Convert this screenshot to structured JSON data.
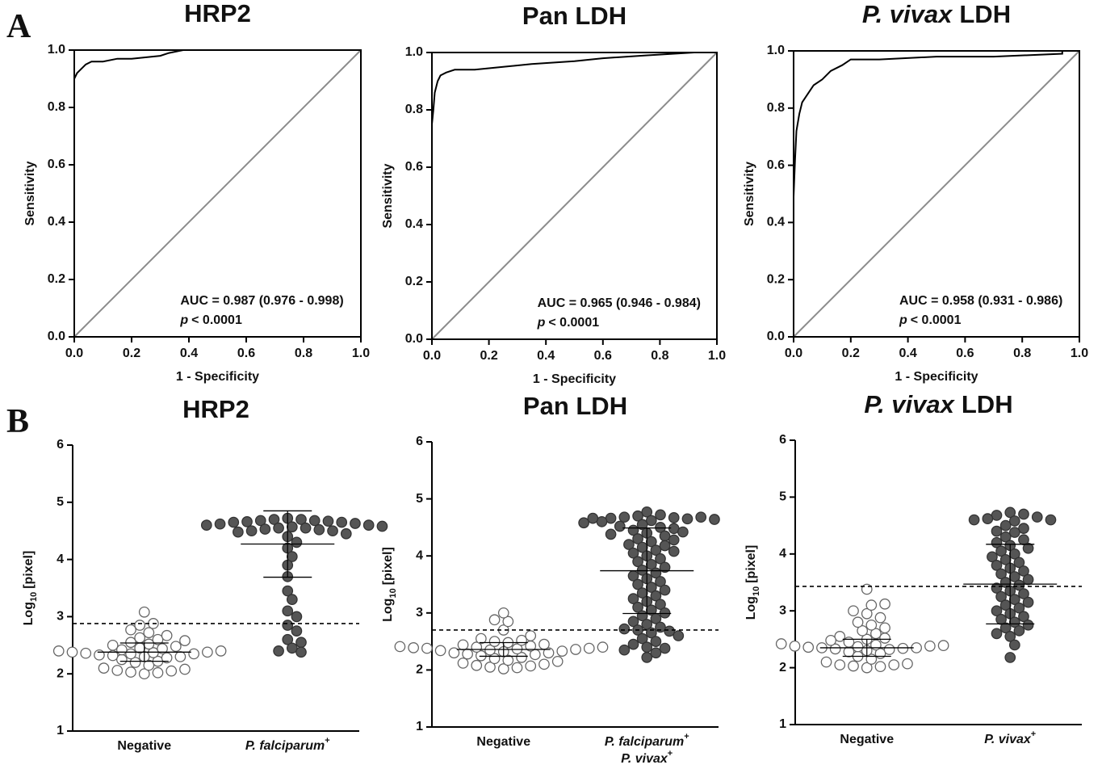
{
  "panel_labels": [
    "A",
    "B"
  ],
  "chart_data": [
    {
      "type": "line",
      "title": "HRP2",
      "xlabel": "1 - Specificity",
      "ylabel": "Sensitivity",
      "xlim": [
        0,
        1
      ],
      "ylim": [
        0,
        1
      ],
      "xticks": [
        {
          "value": 0,
          "label": "0.0"
        },
        0.2,
        0.4,
        0.6,
        0.8,
        {
          "value": 1,
          "label": "1.0"
        }
      ],
      "yticks": [
        {
          "value": 0,
          "label": "0.0"
        },
        0.2,
        0.4,
        0.6,
        0.8,
        {
          "value": 1,
          "label": "1.0"
        }
      ],
      "x": [
        0,
        0,
        0.01,
        0.02,
        0.04,
        0.06,
        0.1,
        0.15,
        0.2,
        0.3,
        0.33,
        0.38,
        1.0
      ],
      "values": [
        0,
        0.9,
        0.92,
        0.93,
        0.95,
        0.96,
        0.96,
        0.97,
        0.97,
        0.98,
        0.99,
        1.0,
        1.0
      ],
      "color": "#000000",
      "annotation": {
        "auc": "AUC = 0.987 (0.976 - 0.998)",
        "p_symbol": "p",
        "p_value": "< 0.0001"
      }
    },
    {
      "type": "line",
      "title": "Pan LDH",
      "xlabel": "1 - Specificity",
      "ylabel": "Sensitivity",
      "xlim": [
        0,
        1
      ],
      "ylim": [
        0,
        1
      ],
      "xticks": [
        {
          "value": 0,
          "label": "0.0"
        },
        0.2,
        0.4,
        0.6,
        0.8,
        {
          "value": 1,
          "label": "1.0"
        }
      ],
      "yticks": [
        {
          "value": 0,
          "label": "0.0"
        },
        0.2,
        0.4,
        0.6,
        0.8,
        {
          "value": 1,
          "label": "1.0"
        }
      ],
      "x": [
        0,
        0,
        0.005,
        0.01,
        0.02,
        0.03,
        0.05,
        0.08,
        0.15,
        0.25,
        0.35,
        0.5,
        0.6,
        0.75,
        0.92
      ],
      "values": [
        0,
        0.75,
        0.8,
        0.86,
        0.9,
        0.92,
        0.93,
        0.94,
        0.94,
        0.95,
        0.96,
        0.97,
        0.98,
        0.99,
        1.0
      ],
      "color": "#000000",
      "annotation": {
        "auc": "AUC = 0.965 (0.946 - 0.984)",
        "p_symbol": "p",
        "p_value": "< 0.0001"
      }
    },
    {
      "type": "line",
      "title_italic": "P. vivax",
      "title": "LDH",
      "xlabel": "1 - Specificity",
      "ylabel": "Sensitivity",
      "xlim": [
        0,
        1
      ],
      "ylim": [
        0,
        1
      ],
      "xticks": [
        {
          "value": 0,
          "label": "0.0"
        },
        0.2,
        0.4,
        0.6,
        0.8,
        {
          "value": 1,
          "label": "1.0"
        }
      ],
      "yticks": [
        {
          "value": 0,
          "label": "0.0"
        },
        0.2,
        0.4,
        0.6,
        0.8,
        {
          "value": 1,
          "label": "1.0"
        }
      ],
      "x": [
        0,
        0,
        0.005,
        0.01,
        0.02,
        0.03,
        0.05,
        0.07,
        0.1,
        0.13,
        0.17,
        0.2,
        0.3,
        0.5,
        0.7,
        0.94,
        0.94
      ],
      "values": [
        0,
        0.49,
        0.62,
        0.72,
        0.78,
        0.82,
        0.85,
        0.88,
        0.9,
        0.93,
        0.95,
        0.97,
        0.97,
        0.98,
        0.98,
        0.99,
        1.0
      ],
      "color": "#000000",
      "annotation": {
        "auc": "AUC = 0.958 (0.931 - 0.986)",
        "p_symbol": "p",
        "p_value": "< 0.0001"
      }
    },
    {
      "type": "strip",
      "title": "HRP2",
      "ylabel": "Log",
      "ylabel_sub": "10",
      "ylabel_rest": "[pixel]",
      "ylim": [
        1,
        6
      ],
      "yticks": [
        1,
        2,
        3,
        4,
        5,
        6
      ],
      "cutoff": 2.88,
      "category_superscript": "+",
      "categories": [
        [
          "Negative"
        ],
        [
          "P. falciparum"
        ]
      ],
      "series": [
        {
          "fill": "#ffffff",
          "stroke": "#666666",
          "mean": 2.38,
          "sd": 0.16,
          "values": [
            2.0,
            2.02,
            2.03,
            2.05,
            2.06,
            2.08,
            2.1,
            2.15,
            2.2,
            2.22,
            2.25,
            2.28,
            2.3,
            2.3,
            2.32,
            2.33,
            2.35,
            2.35,
            2.36,
            2.37,
            2.38,
            2.38,
            2.4,
            2.4,
            2.42,
            2.44,
            2.45,
            2.48,
            2.5,
            2.52,
            2.55,
            2.58,
            2.6,
            2.63,
            2.67,
            2.72,
            2.77,
            2.85,
            2.88,
            3.08
          ]
        },
        {
          "fill": "#555555",
          "stroke": "#333333",
          "mean": 4.27,
          "sd": 0.58,
          "values": [
            4.72,
            4.7,
            4.7,
            4.68,
            4.68,
            4.67,
            4.66,
            4.65,
            4.65,
            4.63,
            4.62,
            4.6,
            4.6,
            4.58,
            4.57,
            4.55,
            4.55,
            4.53,
            4.52,
            4.5,
            4.5,
            4.48,
            4.45,
            4.4,
            4.3,
            4.2,
            4.05,
            3.9,
            3.7,
            3.45,
            3.3,
            3.1,
            3.0,
            2.85,
            2.75,
            2.6,
            2.55,
            2.45,
            2.4,
            2.38
          ]
        }
      ]
    },
    {
      "type": "strip",
      "title": "Pan LDH",
      "ylabel": "Log",
      "ylabel_sub": "10",
      "ylabel_rest": "[pixel]",
      "ylim": [
        1,
        6
      ],
      "yticks": [
        1,
        2,
        3,
        4,
        5,
        6
      ],
      "cutoff": 2.7,
      "category_superscript": "+",
      "categories": [
        [
          "Negative"
        ],
        [
          "P. falciparum",
          "P. vivax"
        ]
      ],
      "series": [
        {
          "fill": "#ffffff",
          "stroke": "#666666",
          "mean": 2.36,
          "sd": 0.12,
          "values": [
            2.02,
            2.04,
            2.05,
            2.07,
            2.08,
            2.1,
            2.12,
            2.15,
            2.17,
            2.2,
            2.22,
            2.25,
            2.27,
            2.28,
            2.3,
            2.3,
            2.32,
            2.33,
            2.34,
            2.35,
            2.36,
            2.37,
            2.38,
            2.38,
            2.39,
            2.4,
            2.4,
            2.41,
            2.42,
            2.44,
            2.45,
            2.48,
            2.5,
            2.52,
            2.55,
            2.6,
            2.7,
            2.85,
            2.88,
            3.0
          ]
        },
        {
          "fill": "#555555",
          "stroke": "#333333",
          "mean": 3.74,
          "sd": 0.75,
          "values": [
            4.77,
            4.72,
            4.7,
            4.68,
            4.67,
            4.66,
            4.65,
            4.62,
            4.6,
            4.55,
            4.5,
            4.45,
            4.4,
            4.35,
            4.3,
            4.25,
            4.2,
            4.15,
            4.1,
            4.05,
            4.0,
            3.95,
            3.9,
            3.85,
            3.8,
            3.75,
            3.7,
            3.65,
            3.6,
            3.55,
            3.5,
            3.45,
            3.4,
            3.35,
            3.3,
            3.25,
            3.2,
            3.15,
            3.1,
            3.05,
            3.0,
            2.95,
            2.9,
            2.85,
            2.8,
            2.75,
            2.72,
            2.7,
            2.68,
            2.65,
            2.6,
            2.55,
            2.5,
            2.45,
            2.4,
            2.38,
            2.35,
            2.3,
            2.22,
            4.68,
            4.66,
            4.64,
            4.58,
            4.52,
            4.48,
            4.42,
            4.38,
            4.28,
            4.18,
            4.08
          ]
        }
      ]
    },
    {
      "type": "strip",
      "title_italic": "P. vivax",
      "title": "LDH",
      "ylabel": "Log",
      "ylabel_sub": "10",
      "ylabel_rest": "[pixel]",
      "ylim": [
        1,
        6
      ],
      "yticks": [
        1,
        2,
        3,
        4,
        5,
        6
      ],
      "cutoff": 3.43,
      "category_superscript": "+",
      "categories": [
        [
          "Negative"
        ],
        [
          "P. vivax"
        ]
      ],
      "series": [
        {
          "fill": "#ffffff",
          "stroke": "#666666",
          "mean": 2.35,
          "sd": 0.15,
          "values": [
            2.0,
            2.02,
            2.03,
            2.05,
            2.05,
            2.07,
            2.1,
            2.15,
            2.2,
            2.25,
            2.28,
            2.3,
            2.32,
            2.33,
            2.34,
            2.35,
            2.35,
            2.36,
            2.37,
            2.38,
            2.38,
            2.39,
            2.4,
            2.42,
            2.45,
            2.5,
            2.52,
            2.55,
            2.6,
            2.65,
            2.7,
            2.75,
            2.8,
            2.88,
            2.95,
            3.0,
            3.1,
            3.12,
            3.38,
            2.48
          ]
        },
        {
          "fill": "#555555",
          "stroke": "#333333",
          "mean": 3.47,
          "sd": 0.7,
          "values": [
            4.73,
            4.7,
            4.68,
            4.65,
            4.62,
            4.6,
            4.6,
            4.58,
            4.5,
            4.45,
            4.4,
            4.38,
            4.3,
            4.25,
            4.2,
            4.15,
            4.1,
            4.05,
            4.0,
            3.95,
            3.9,
            3.85,
            3.8,
            3.75,
            3.7,
            3.65,
            3.6,
            3.55,
            3.5,
            3.45,
            3.4,
            3.35,
            3.3,
            3.25,
            3.2,
            3.15,
            3.1,
            3.05,
            3.0,
            2.95,
            2.9,
            2.85,
            2.8,
            2.75,
            2.7,
            2.65,
            2.6,
            2.55,
            2.4,
            2.18
          ]
        }
      ]
    }
  ]
}
